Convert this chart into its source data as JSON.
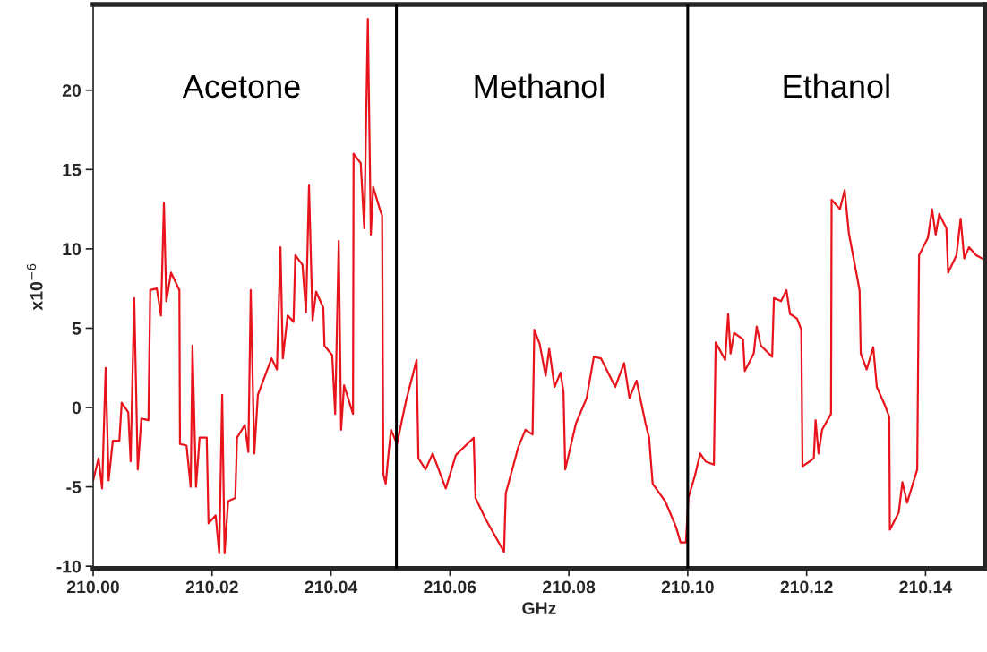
{
  "chart_data": {
    "type": "line",
    "xlabel": "GHz",
    "ylabel": "x10$^{−6}$",
    "x": [
      210.0,
      210.0009,
      210.0015,
      210.0021,
      210.0026,
      210.0033,
      210.0044,
      210.0048,
      210.0059,
      210.0063,
      210.0069,
      210.0075,
      210.0081,
      210.0093,
      210.0096,
      210.0107,
      210.0114,
      210.0119,
      210.0123,
      210.0131,
      210.0145,
      210.0146,
      210.0157,
      210.0164,
      210.0167,
      210.0173,
      210.0179,
      210.0191,
      210.0194,
      210.0206,
      210.0212,
      210.0217,
      210.0221,
      210.0227,
      210.0239,
      210.0242,
      210.0255,
      210.0261,
      210.0265,
      210.0271,
      210.0277,
      210.03,
      210.0309,
      210.0315,
      210.0319,
      210.0327,
      210.0337,
      210.034,
      210.0352,
      210.0358,
      210.0363,
      210.0369,
      210.0375,
      210.0387,
      210.0389,
      210.0402,
      210.0407,
      210.0413,
      210.0417,
      210.0422,
      210.0437,
      210.0438,
      210.045,
      210.0456,
      210.0462,
      210.0467,
      210.0471,
      210.0483,
      210.0486,
      210.0488,
      210.0492,
      210.0497,
      210.0501,
      210.0511,
      210.0526,
      210.0544,
      210.0547,
      210.0559,
      210.0571,
      210.0593,
      210.061,
      210.064,
      210.0643,
      210.0661,
      210.0691,
      210.0694,
      210.0715,
      210.0727,
      210.0739,
      210.0742,
      210.0751,
      210.0761,
      210.0767,
      210.0776,
      210.0786,
      210.0791,
      210.0794,
      210.0812,
      210.083,
      210.0842,
      210.0854,
      210.0878,
      210.0893,
      210.0902,
      210.0914,
      210.0929,
      210.0935,
      210.0941,
      210.0962,
      210.098,
      210.0988,
      210.0997,
      210.1001,
      210.1012,
      210.1021,
      210.103,
      210.1044,
      210.1047,
      210.1063,
      210.1068,
      210.1072,
      210.1078,
      210.1093,
      210.1096,
      210.1111,
      210.1116,
      210.1123,
      210.1142,
      210.1145,
      210.1157,
      210.1166,
      210.1172,
      210.1184,
      210.1191,
      210.1193,
      210.1205,
      210.1212,
      210.1215,
      210.122,
      210.1226,
      210.1241,
      210.1242,
      210.1256,
      210.1264,
      210.1271,
      210.1289,
      210.1291,
      210.1301,
      210.1312,
      210.1318,
      210.1331,
      210.1339,
      210.134,
      210.1355,
      210.1361,
      210.1369,
      210.1386,
      210.1389,
      210.1404,
      210.1411,
      210.1417,
      210.1423,
      210.1435,
      210.1438,
      210.1452,
      210.1459,
      210.1465,
      210.1473,
      210.1485,
      210.15
    ],
    "series": [
      {
        "color": "#e8141c",
        "values": [
          -4.6,
          -3.2,
          -5.1,
          2.5,
          -4.6,
          -2.1,
          -2.1,
          0.3,
          -0.3,
          -3.4,
          6.9,
          -3.9,
          -0.7,
          -0.8,
          7.4,
          7.5,
          5.8,
          12.9,
          6.7,
          8.5,
          7.4,
          -2.3,
          -2.4,
          -5.0,
          3.9,
          -5.0,
          -1.9,
          -1.9,
          -7.3,
          -6.8,
          -9.2,
          0.8,
          -9.2,
          -5.9,
          -5.7,
          -1.9,
          -1.1,
          -2.8,
          7.4,
          -2.9,
          0.8,
          3.1,
          2.4,
          10.1,
          3.1,
          5.8,
          5.4,
          9.6,
          9.0,
          6.0,
          14.0,
          5.5,
          7.3,
          6.3,
          3.9,
          3.3,
          -0.4,
          10.5,
          -1.4,
          1.4,
          -0.4,
          16.0,
          15.4,
          11.3,
          24.5,
          10.9,
          13.9,
          12.4,
          12.1,
          -4.2,
          -4.8,
          -2.8,
          -1.4,
          -2.3,
          0.4,
          3.0,
          -3.2,
          -3.9,
          -2.9,
          -5.1,
          -3.0,
          -1.9,
          -5.7,
          -7.1,
          -9.1,
          -5.4,
          -2.5,
          -1.4,
          -1.7,
          4.9,
          4.0,
          2.0,
          3.7,
          1.3,
          2.2,
          1.0,
          -3.9,
          -1.0,
          0.6,
          3.2,
          3.1,
          1.3,
          2.8,
          0.6,
          1.7,
          -1.0,
          -1.9,
          -4.8,
          -5.9,
          -7.5,
          -8.5,
          -8.5,
          -5.7,
          -4.3,
          -2.9,
          -3.4,
          -3.6,
          4.1,
          3.0,
          5.9,
          3.4,
          4.7,
          4.3,
          2.3,
          3.4,
          5.1,
          3.9,
          3.2,
          6.9,
          6.7,
          7.4,
          5.9,
          5.6,
          4.9,
          -3.7,
          -3.4,
          -3.2,
          -0.8,
          -2.9,
          -1.4,
          -0.4,
          13.1,
          12.5,
          13.7,
          11.0,
          7.4,
          3.4,
          2.4,
          3.8,
          1.3,
          0.2,
          -0.6,
          -7.7,
          -6.6,
          -4.7,
          -6.0,
          -3.9,
          9.6,
          10.7,
          12.5,
          10.9,
          12.2,
          11.3,
          8.5,
          9.6,
          11.9,
          9.4,
          10.1,
          9.6,
          9.3
        ]
      }
    ],
    "xlim": [
      210.0,
      210.15
    ],
    "ylim": [
      -10.15,
      25.4
    ],
    "xticks": [
      {
        "value": 210.0,
        "label": "210.00"
      },
      {
        "value": 210.02,
        "label": "210.02"
      },
      {
        "value": 210.04,
        "label": "210.04"
      },
      {
        "value": 210.06,
        "label": "210.06"
      },
      {
        "value": 210.08,
        "label": "210.08"
      },
      {
        "value": 210.1,
        "label": "210.10"
      },
      {
        "value": 210.12,
        "label": "210.12"
      },
      {
        "value": 210.14,
        "label": "210.14"
      }
    ],
    "yticks": [
      -10,
      -5,
      0,
      5,
      10,
      15,
      20
    ],
    "ref_lines": [
      {
        "axis": "x",
        "value": 210.051,
        "color": "#000000"
      },
      {
        "axis": "x",
        "value": 210.1,
        "color": "#000000"
      }
    ],
    "annotations": [
      "Acetone",
      "Methanol",
      "Ethanol"
    ],
    "grid": false,
    "legend": false
  }
}
